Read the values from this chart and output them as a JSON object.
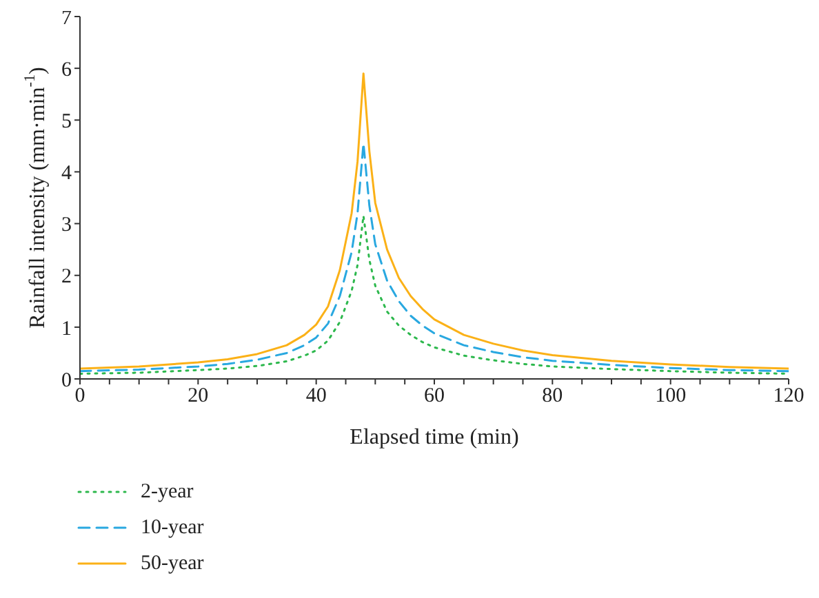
{
  "chart_data": {
    "type": "line",
    "xlabel": "Elapsed time (min)",
    "ylabel": "Rainfall intensity (mm·min$^{-1}$)",
    "x": [
      0,
      10,
      20,
      25,
      30,
      35,
      38,
      40,
      42,
      44,
      46,
      47,
      48,
      49,
      50,
      52,
      54,
      56,
      58,
      60,
      65,
      70,
      75,
      80,
      90,
      100,
      110,
      120
    ],
    "series": [
      {
        "name": "2-year",
        "color": "#2db84d",
        "line_style": "dotted",
        "values": [
          0.1,
          0.12,
          0.17,
          0.2,
          0.25,
          0.34,
          0.45,
          0.55,
          0.74,
          1.1,
          1.7,
          2.2,
          3.15,
          2.3,
          1.8,
          1.3,
          1.03,
          0.85,
          0.71,
          0.61,
          0.45,
          0.36,
          0.29,
          0.24,
          0.19,
          0.15,
          0.12,
          0.1
        ]
      },
      {
        "name": "10-year",
        "color": "#29a8e0",
        "line_style": "dashed",
        "values": [
          0.15,
          0.18,
          0.24,
          0.29,
          0.37,
          0.5,
          0.65,
          0.8,
          1.07,
          1.6,
          2.45,
          3.2,
          4.55,
          3.35,
          2.6,
          1.9,
          1.5,
          1.22,
          1.03,
          0.88,
          0.65,
          0.52,
          0.42,
          0.35,
          0.27,
          0.21,
          0.17,
          0.15
        ]
      },
      {
        "name": "50-year",
        "color": "#fbb117",
        "line_style": "solid",
        "values": [
          0.2,
          0.24,
          0.32,
          0.38,
          0.48,
          0.65,
          0.85,
          1.05,
          1.4,
          2.1,
          3.2,
          4.2,
          5.9,
          4.4,
          3.4,
          2.5,
          1.95,
          1.6,
          1.35,
          1.15,
          0.85,
          0.68,
          0.55,
          0.46,
          0.35,
          0.28,
          0.23,
          0.2
        ]
      }
    ],
    "xlim": [
      0,
      120
    ],
    "xticks": [
      0,
      {
        "value": 5,
        "label": null
      },
      {
        "value": 10,
        "label": null
      },
      {
        "value": 15,
        "label": null
      },
      20,
      {
        "value": 25,
        "label": null
      },
      {
        "value": 30,
        "label": null
      },
      {
        "value": 35,
        "label": null
      },
      40,
      {
        "value": 45,
        "label": null
      },
      {
        "value": 50,
        "label": null
      },
      {
        "value": 55,
        "label": null
      },
      60,
      {
        "value": 65,
        "label": null
      },
      {
        "value": 70,
        "label": null
      },
      {
        "value": 75,
        "label": null
      },
      80,
      {
        "value": 85,
        "label": null
      },
      {
        "value": 90,
        "label": null
      },
      {
        "value": 95,
        "label": null
      },
      100,
      {
        "value": 105,
        "label": null
      },
      {
        "value": 110,
        "label": null
      },
      {
        "value": 115,
        "label": null
      },
      120
    ],
    "ylim": [
      0,
      7
    ],
    "yticks": [
      0,
      1,
      2,
      3,
      4,
      5,
      6,
      7
    ],
    "grid": false,
    "legend": "bottom left",
    "marker": "none"
  }
}
